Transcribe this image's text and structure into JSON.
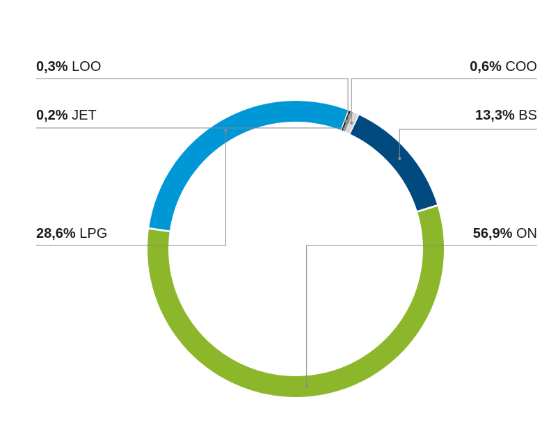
{
  "chart_data": {
    "type": "pie",
    "variant": "donut",
    "title": "",
    "legend": "none",
    "series": [
      {
        "categories": [
          "BS",
          "ON",
          "LPG",
          "JET",
          "LOO",
          "COO"
        ],
        "values": [
          13.3,
          56.9,
          28.6,
          0.2,
          0.3,
          0.6
        ],
        "labels": [
          "13,3%",
          "56,9%",
          "28,6%",
          "0,2%",
          "0,3%",
          "0,6%"
        ],
        "colors": [
          "#004a80",
          "#8cb72b",
          "#0097d7",
          "#111111",
          "#9a9a9a",
          "#d8d8d8"
        ]
      }
    ],
    "label_side": [
      "right",
      "right",
      "left",
      "left",
      "left",
      "right"
    ]
  }
}
